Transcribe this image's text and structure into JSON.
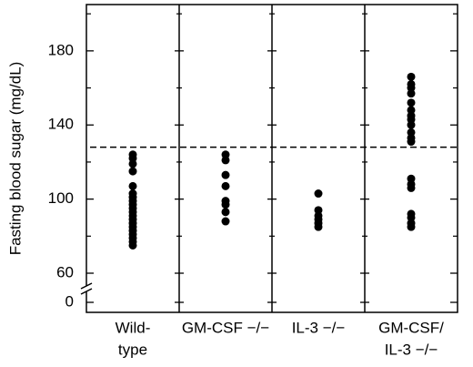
{
  "chart_data": {
    "type": "strip",
    "y_label": "Fasting blood sugar (mg/dL)",
    "categories": [
      [
        "Wild-",
        "type"
      ],
      [
        "GM-CSF −/−"
      ],
      [
        "IL-3 −/−"
      ],
      [
        "GM-CSF/",
        "IL-3 −/−"
      ]
    ],
    "values": [
      [
        124,
        122,
        119,
        115,
        107,
        103,
        101,
        99,
        97,
        95,
        93,
        91,
        89,
        87,
        85,
        83,
        81,
        79,
        77,
        75
      ],
      [
        124,
        121,
        113,
        107,
        99,
        97,
        93,
        88
      ],
      [
        103,
        94,
        91,
        89,
        87,
        85
      ],
      [
        166,
        162,
        160,
        157,
        152,
        148,
        145,
        143,
        140,
        136,
        133,
        131,
        111,
        108,
        106,
        92,
        90,
        87,
        85
      ]
    ],
    "color": "#000000",
    "reference_line": 128,
    "ylim": [
      0,
      205
    ],
    "yticks": [
      0,
      60,
      100,
      140,
      180
    ],
    "minor_yticks": [
      80,
      120,
      160,
      200
    ],
    "axis_break": true
  }
}
